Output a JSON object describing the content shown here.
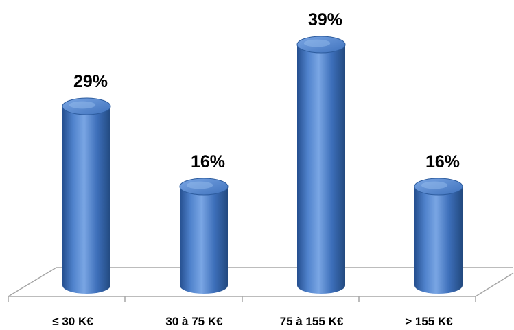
{
  "chart_data": {
    "type": "bar",
    "categories": [
      "≤ 30 K€",
      "30 à 75 K€",
      "75 à 155 K€",
      "> 155 K€"
    ],
    "values": [
      29,
      16,
      39,
      16
    ],
    "data_labels": [
      "29%",
      "16%",
      "39%",
      "16%"
    ],
    "unit": "%",
    "ylim": [
      0,
      39
    ],
    "grid": false,
    "legend": "none",
    "bar_style": "3d-cylinder",
    "colors": {
      "bar_light": "#6f9ee0",
      "bar_mid": "#3f72bd",
      "bar_dark": "#254f8f",
      "bar_top": "#5b8bd4",
      "floor_line": "#a6a6a6"
    }
  }
}
